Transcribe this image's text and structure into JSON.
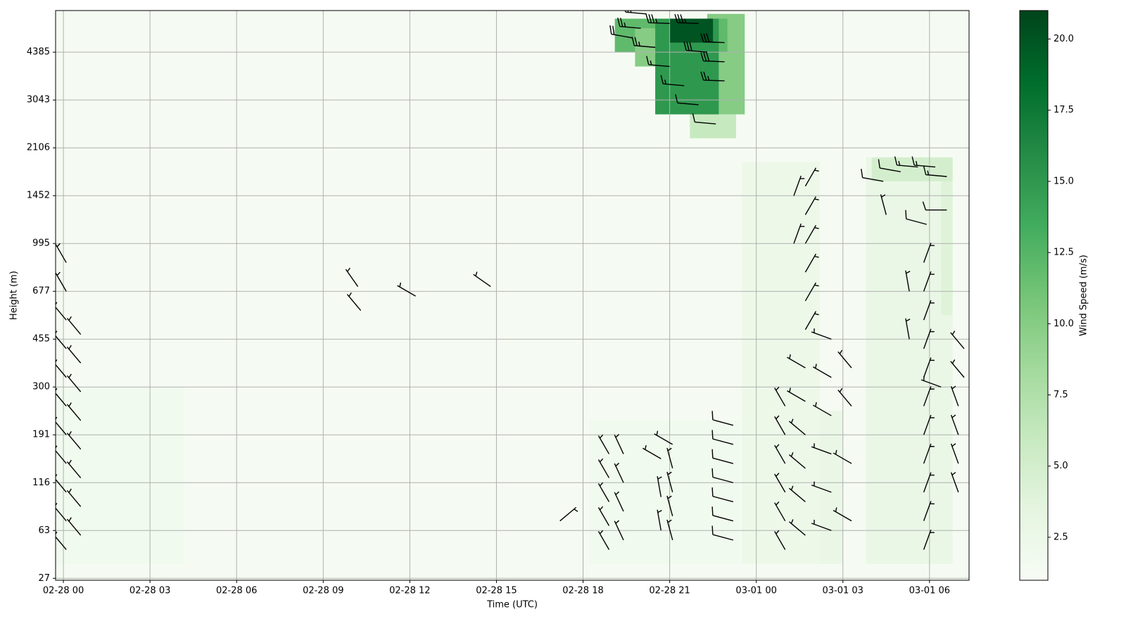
{
  "chart_data": {
    "type": "heatmap",
    "x_label": "Time (UTC)",
    "y_label": "Height (m)",
    "colorbar_label": "Wind Speed (m/s)",
    "cmap": "Greens",
    "grid": true,
    "xlim": [
      -0.27,
      31.37
    ],
    "xticks": [
      {
        "value": 0,
        "label": "02-28 00"
      },
      {
        "value": 3,
        "label": "02-28 03"
      },
      {
        "value": 6,
        "label": "02-28 06"
      },
      {
        "value": 9,
        "label": "02-28 09"
      },
      {
        "value": 12,
        "label": "02-28 12"
      },
      {
        "value": 15,
        "label": "02-28 15"
      },
      {
        "value": 18,
        "label": "02-28 18"
      },
      {
        "value": 21,
        "label": "02-28 21"
      },
      {
        "value": 24,
        "label": "03-01 00"
      },
      {
        "value": 27,
        "label": "03-01 03"
      },
      {
        "value": 30,
        "label": "03-01 06"
      }
    ],
    "ylim": [
      -0.04,
      11.87
    ],
    "yticks": [
      {
        "value": 0,
        "label": "27"
      },
      {
        "value": 1,
        "label": "63"
      },
      {
        "value": 2,
        "label": "116"
      },
      {
        "value": 3,
        "label": "191"
      },
      {
        "value": 4,
        "label": "300"
      },
      {
        "value": 5,
        "label": "455"
      },
      {
        "value": 6,
        "label": "677"
      },
      {
        "value": 7,
        "label": "995"
      },
      {
        "value": 8,
        "label": "1452"
      },
      {
        "value": 9,
        "label": "2106"
      },
      {
        "value": 10,
        "label": "3043"
      },
      {
        "value": 11,
        "label": "4385"
      }
    ],
    "clim": [
      0.99,
      21.0
    ],
    "cticks": [
      {
        "value": 2.5,
        "label": "2.5"
      },
      {
        "value": 5,
        "label": "5.0"
      },
      {
        "value": 7.5,
        "label": "7.5"
      },
      {
        "value": 10,
        "label": "10.0"
      },
      {
        "value": 12.5,
        "label": "12.5"
      },
      {
        "value": 15,
        "label": "15.0"
      },
      {
        "value": 17.5,
        "label": "17.5"
      },
      {
        "value": 20,
        "label": "20.0"
      }
    ],
    "field": [
      [
        -0.27,
        31.37,
        -0.04,
        11.87,
        1.3
      ],
      [
        -0.27,
        4.2,
        0.3,
        4.0,
        1.8
      ],
      [
        18.2,
        23.4,
        0.3,
        3.3,
        1.8
      ],
      [
        23.5,
        26.2,
        0.3,
        8.7,
        2.4
      ],
      [
        26.2,
        27.0,
        0.3,
        3.5,
        2.8
      ],
      [
        27.8,
        30.8,
        0.3,
        8.8,
        2.8
      ],
      [
        28.0,
        30.8,
        8.3,
        8.8,
        5.0
      ],
      [
        30.4,
        30.8,
        5.5,
        8.3,
        4.0
      ],
      [
        21.7,
        23.3,
        9.2,
        10.0,
        6.0
      ],
      [
        22.3,
        23.6,
        9.7,
        11.8,
        10.0
      ],
      [
        19.1,
        23.0,
        11.0,
        11.7,
        12.0
      ],
      [
        19.8,
        21.0,
        10.7,
        11.5,
        10.0
      ],
      [
        20.5,
        22.7,
        9.7,
        11.7,
        15.0
      ],
      [
        21.0,
        22.5,
        11.2,
        11.7,
        20.0
      ]
    ],
    "barbs": [
      [
        0.1,
        0.6,
        5,
        320
      ],
      [
        0.1,
        1.2,
        5,
        320
      ],
      [
        0.1,
        1.8,
        5,
        320
      ],
      [
        0.1,
        2.4,
        5,
        320
      ],
      [
        0.1,
        3.0,
        5,
        320
      ],
      [
        0.1,
        3.6,
        5,
        320
      ],
      [
        0.1,
        4.2,
        5,
        320
      ],
      [
        0.1,
        4.8,
        5,
        320
      ],
      [
        0.1,
        5.4,
        4,
        320
      ],
      [
        0.1,
        6.0,
        4,
        330
      ],
      [
        0.1,
        6.6,
        3,
        330
      ],
      [
        0.6,
        0.9,
        4,
        320
      ],
      [
        0.6,
        1.5,
        4,
        320
      ],
      [
        0.6,
        2.1,
        4,
        320
      ],
      [
        0.6,
        2.7,
        4,
        320
      ],
      [
        0.6,
        3.3,
        4,
        320
      ],
      [
        0.6,
        3.9,
        4,
        320
      ],
      [
        0.6,
        4.5,
        4,
        320
      ],
      [
        0.6,
        5.1,
        4,
        320
      ],
      [
        10.3,
        5.6,
        3,
        320
      ],
      [
        10.2,
        6.1,
        3,
        325
      ],
      [
        12.2,
        5.9,
        3,
        300
      ],
      [
        14.8,
        6.1,
        3,
        305
      ],
      [
        17.2,
        1.2,
        3,
        50
      ],
      [
        18.9,
        0.6,
        4,
        330
      ],
      [
        18.9,
        1.1,
        4,
        330
      ],
      [
        18.9,
        1.6,
        4,
        330
      ],
      [
        18.9,
        2.1,
        4,
        330
      ],
      [
        18.9,
        2.6,
        4,
        330
      ],
      [
        19.4,
        0.8,
        4,
        335
      ],
      [
        19.4,
        1.4,
        4,
        335
      ],
      [
        19.4,
        2.0,
        4,
        335
      ],
      [
        19.4,
        2.6,
        4,
        335
      ],
      [
        21.1,
        0.8,
        4,
        345
      ],
      [
        21.1,
        1.3,
        4,
        345
      ],
      [
        21.1,
        1.8,
        4,
        345
      ],
      [
        21.1,
        2.3,
        4,
        345
      ],
      [
        21.1,
        2.8,
        4,
        300
      ],
      [
        20.7,
        1.0,
        4,
        350
      ],
      [
        20.7,
        1.7,
        4,
        350
      ],
      [
        20.7,
        2.5,
        4,
        300
      ],
      [
        23.2,
        0.8,
        6,
        285
      ],
      [
        23.2,
        1.2,
        6,
        285
      ],
      [
        23.2,
        1.6,
        6,
        285
      ],
      [
        23.2,
        2.0,
        6,
        285
      ],
      [
        23.2,
        2.4,
        6,
        285
      ],
      [
        23.2,
        2.8,
        6,
        285
      ],
      [
        23.2,
        3.2,
        6,
        285
      ],
      [
        25.0,
        0.6,
        5,
        330
      ],
      [
        25.0,
        1.2,
        5,
        330
      ],
      [
        25.0,
        1.8,
        5,
        330
      ],
      [
        25.0,
        2.4,
        5,
        330
      ],
      [
        25.0,
        3.0,
        5,
        330
      ],
      [
        25.0,
        3.6,
        5,
        330
      ],
      [
        25.7,
        0.9,
        5,
        310
      ],
      [
        25.7,
        1.6,
        5,
        310
      ],
      [
        25.7,
        2.3,
        5,
        310
      ],
      [
        25.7,
        3.0,
        5,
        310
      ],
      [
        25.7,
        3.7,
        5,
        300
      ],
      [
        25.7,
        4.4,
        5,
        300
      ],
      [
        26.6,
        1.0,
        5,
        290
      ],
      [
        26.6,
        1.8,
        5,
        290
      ],
      [
        26.6,
        2.6,
        5,
        290
      ],
      [
        26.6,
        3.4,
        5,
        300
      ],
      [
        26.6,
        4.2,
        5,
        300
      ],
      [
        26.6,
        5.0,
        5,
        290
      ],
      [
        27.3,
        1.2,
        5,
        300
      ],
      [
        27.3,
        2.4,
        5,
        300
      ],
      [
        27.3,
        3.6,
        5,
        320
      ],
      [
        27.3,
        4.4,
        5,
        320
      ],
      [
        25.7,
        5.2,
        4,
        30
      ],
      [
        25.7,
        5.8,
        4,
        30
      ],
      [
        25.7,
        6.4,
        4,
        30
      ],
      [
        25.7,
        7.0,
        4,
        30
      ],
      [
        25.7,
        7.6,
        4,
        30
      ],
      [
        25.7,
        8.2,
        4,
        30
      ],
      [
        25.3,
        7.0,
        4,
        20
      ],
      [
        25.3,
        8.0,
        4,
        20
      ],
      [
        28.4,
        8.3,
        6,
        280
      ],
      [
        29.0,
        8.5,
        7,
        280
      ],
      [
        29.6,
        8.6,
        8,
        275
      ],
      [
        30.2,
        8.6,
        8,
        275
      ],
      [
        30.6,
        8.4,
        8,
        275
      ],
      [
        30.6,
        7.7,
        7,
        270
      ],
      [
        29.9,
        7.4,
        6,
        285
      ],
      [
        28.5,
        7.6,
        5,
        345
      ],
      [
        29.8,
        0.6,
        4,
        20
      ],
      [
        29.8,
        1.2,
        4,
        20
      ],
      [
        29.8,
        1.8,
        4,
        20
      ],
      [
        29.8,
        2.4,
        4,
        20
      ],
      [
        29.8,
        3.0,
        4,
        20
      ],
      [
        29.8,
        3.6,
        4,
        20
      ],
      [
        29.8,
        4.2,
        4,
        20
      ],
      [
        29.8,
        4.8,
        4,
        20
      ],
      [
        29.8,
        5.4,
        4,
        20
      ],
      [
        29.8,
        6.0,
        4,
        20
      ],
      [
        29.8,
        6.6,
        4,
        20
      ],
      [
        29.3,
        5.0,
        4,
        350
      ],
      [
        29.3,
        6.0,
        4,
        350
      ],
      [
        31.0,
        1.8,
        3,
        340
      ],
      [
        31.0,
        2.4,
        3,
        340
      ],
      [
        31.0,
        3.0,
        3,
        340
      ],
      [
        31.0,
        3.6,
        3,
        340
      ],
      [
        31.2,
        4.2,
        3,
        320
      ],
      [
        31.2,
        4.8,
        3,
        320
      ],
      [
        30.4,
        4.0,
        4,
        290
      ],
      [
        19.5,
        11.9,
        12,
        275
      ],
      [
        20.0,
        11.5,
        14,
        275
      ],
      [
        20.5,
        11.1,
        13,
        275
      ],
      [
        21.0,
        10.7,
        10,
        275
      ],
      [
        21.5,
        10.3,
        8,
        275
      ],
      [
        22.0,
        9.9,
        7,
        275
      ],
      [
        22.6,
        9.5,
        6,
        275
      ],
      [
        21.0,
        11.6,
        20,
        272
      ],
      [
        22.0,
        11.6,
        20,
        272
      ],
      [
        22.9,
        11.2,
        18,
        272
      ],
      [
        22.9,
        10.8,
        16,
        272
      ],
      [
        22.9,
        10.4,
        14,
        272
      ],
      [
        22.3,
        11.0,
        16,
        275
      ],
      [
        20.2,
        11.8,
        15,
        275
      ],
      [
        19.7,
        11.3,
        12,
        280
      ]
    ]
  }
}
